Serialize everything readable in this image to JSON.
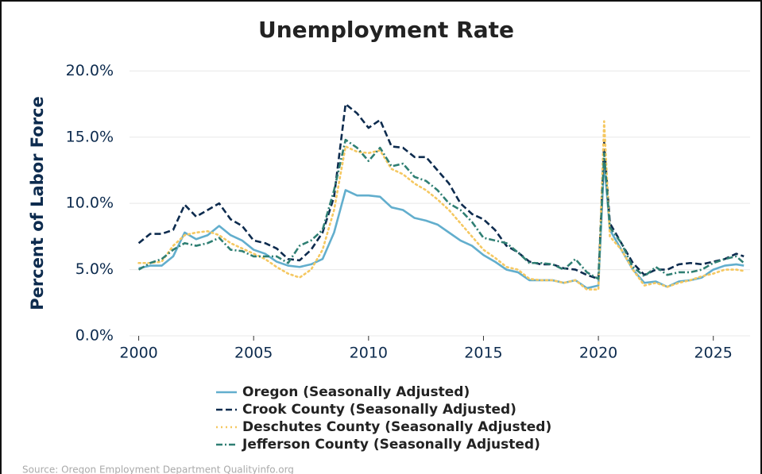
{
  "chart_data": {
    "type": "line",
    "title": "Unemployment Rate",
    "ylabel": "Percent of Labor Force",
    "source": "Source: Oregon Employment Department Qualityinfo.org",
    "x": [
      2000,
      2000.5,
      2001,
      2001.5,
      2002,
      2002.5,
      2003,
      2003.5,
      2004,
      2004.5,
      2005,
      2005.5,
      2006,
      2006.5,
      2007,
      2007.5,
      2008,
      2008.5,
      2009,
      2009.5,
      2010,
      2010.5,
      2011,
      2011.5,
      2012,
      2012.5,
      2013,
      2013.5,
      2014,
      2014.5,
      2015,
      2015.5,
      2016,
      2016.5,
      2017,
      2017.5,
      2018,
      2018.5,
      2019,
      2019.5,
      2020,
      2020.25,
      2020.5,
      2021,
      2021.5,
      2022,
      2022.5,
      2023,
      2023.5,
      2024,
      2024.5,
      2025,
      2025.5,
      2026,
      2026.33
    ],
    "series": [
      {
        "name": "Oregon (Seasonally Adjusted)",
        "color": "#62aecd",
        "dash": "solid",
        "values": [
          5.1,
          5.3,
          5.3,
          6.0,
          7.8,
          7.3,
          7.6,
          8.3,
          7.6,
          7.2,
          6.5,
          6.2,
          5.6,
          5.3,
          5.2,
          5.4,
          5.8,
          7.8,
          11.0,
          10.6,
          10.6,
          10.5,
          9.7,
          9.5,
          8.9,
          8.7,
          8.4,
          7.8,
          7.2,
          6.8,
          6.1,
          5.6,
          5.0,
          4.8,
          4.2,
          4.2,
          4.2,
          4.0,
          4.2,
          3.6,
          3.8,
          13.3,
          8.0,
          6.5,
          5.0,
          4.0,
          4.1,
          3.7,
          4.1,
          4.2,
          4.4,
          5.0,
          5.3,
          5.4,
          5.3
        ]
      },
      {
        "name": "Crook County (Seasonally Adjusted)",
        "color": "#0d2b4e",
        "dash": "dashed",
        "values": [
          7.0,
          7.7,
          7.7,
          8.0,
          9.9,
          9.0,
          9.5,
          10.0,
          8.8,
          8.3,
          7.2,
          7.0,
          6.6,
          5.8,
          5.7,
          6.5,
          7.8,
          10.5,
          17.5,
          16.8,
          15.7,
          16.3,
          14.3,
          14.2,
          13.5,
          13.5,
          12.5,
          11.5,
          10.0,
          9.2,
          8.8,
          8.0,
          6.8,
          6.3,
          5.6,
          5.4,
          5.4,
          5.1,
          5.0,
          4.6,
          4.3,
          14.6,
          8.5,
          7.0,
          5.5,
          4.6,
          5.0,
          5.0,
          5.4,
          5.5,
          5.4,
          5.6,
          5.8,
          6.2,
          6.0
        ]
      },
      {
        "name": "Deschutes County (Seasonally Adjusted)",
        "color": "#f5c861",
        "dash": "dotted",
        "values": [
          5.5,
          5.5,
          5.6,
          6.8,
          7.6,
          7.8,
          7.9,
          7.6,
          7.0,
          6.6,
          6.2,
          5.8,
          5.2,
          4.7,
          4.4,
          5.0,
          6.5,
          9.5,
          14.3,
          13.9,
          13.8,
          14.0,
          12.6,
          12.2,
          11.5,
          11.0,
          10.3,
          9.5,
          8.5,
          7.5,
          6.5,
          5.9,
          5.2,
          5.0,
          4.3,
          4.2,
          4.2,
          4.0,
          4.2,
          3.5,
          3.5,
          16.2,
          7.5,
          6.5,
          5.0,
          3.8,
          4.0,
          3.7,
          4.0,
          4.2,
          4.5,
          4.7,
          5.0,
          5.0,
          4.9
        ]
      },
      {
        "name": "Jefferson County (Seasonally Adjusted)",
        "color": "#2f7f73",
        "dash": "dashdot",
        "values": [
          5.0,
          5.5,
          5.8,
          6.5,
          7.0,
          6.8,
          7.0,
          7.4,
          6.5,
          6.4,
          6.0,
          6.0,
          6.0,
          5.5,
          6.8,
          7.2,
          8.0,
          11.0,
          14.8,
          14.2,
          13.2,
          14.2,
          12.8,
          13.0,
          12.0,
          11.7,
          11.0,
          10.0,
          9.5,
          8.6,
          7.4,
          7.2,
          7.0,
          6.3,
          5.5,
          5.5,
          5.4,
          5.0,
          5.8,
          4.8,
          4.3,
          13.8,
          8.2,
          7.0,
          5.2,
          4.5,
          5.2,
          4.6,
          4.8,
          4.8,
          5.0,
          5.5,
          5.8,
          6.0,
          5.5
        ]
      }
    ],
    "xlim": [
      1999.6,
      2026.6
    ],
    "xticks": [
      2000,
      2005,
      2010,
      2015,
      2020,
      2025
    ],
    "ylim": [
      0,
      20.5
    ],
    "yticks": [
      {
        "value": 0,
        "label": "0.0%"
      },
      {
        "value": 5,
        "label": "5.0%"
      },
      {
        "value": 10,
        "label": "10.0%"
      },
      {
        "value": 15,
        "label": "15.0%"
      },
      {
        "value": 20,
        "label": "20.0%"
      }
    ],
    "grid": true,
    "legend": "bottom"
  }
}
